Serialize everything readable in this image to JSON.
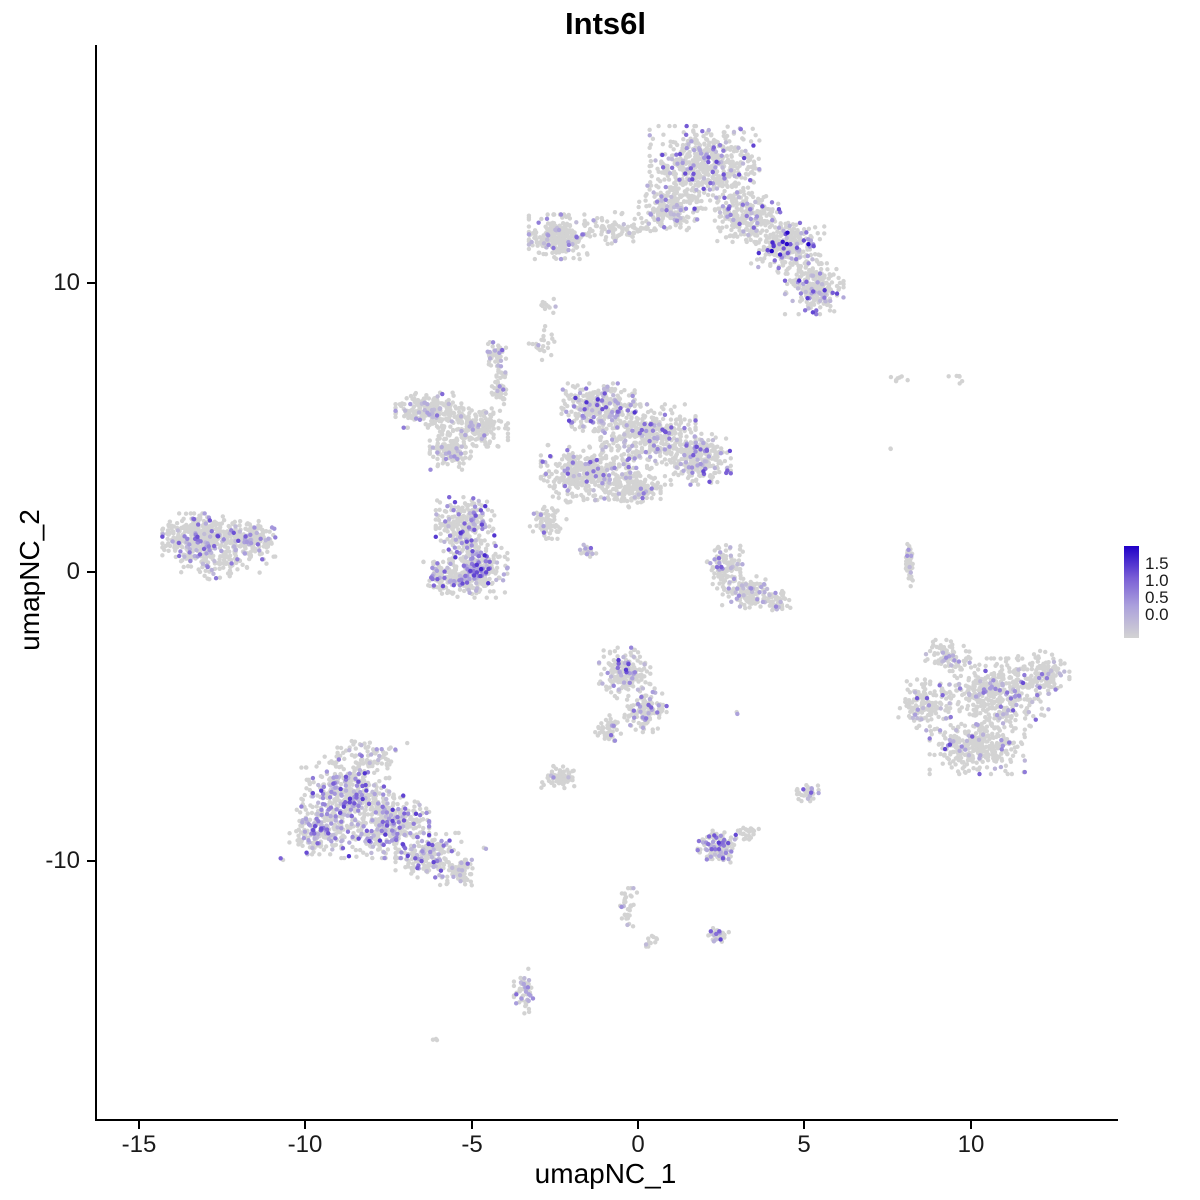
{
  "chart_data": {
    "type": "scatter",
    "title": "Ints6l",
    "xlabel": "umapNC_1",
    "ylabel": "umapNC_2",
    "xlim": [
      -16.3,
      14.3
    ],
    "ylim": [
      -18.9,
      18.2
    ],
    "grid": false,
    "x_ticks": [
      {
        "value": -15,
        "label": "-15"
      },
      {
        "value": -10,
        "label": "-10"
      },
      {
        "value": -5,
        "label": "-5"
      },
      {
        "value": 0,
        "label": "0"
      },
      {
        "value": 5,
        "label": "5"
      },
      {
        "value": 10,
        "label": "10"
      }
    ],
    "y_ticks": [
      {
        "value": 10,
        "label": "10"
      },
      {
        "value": 0,
        "label": "0"
      },
      {
        "value": -10,
        "label": "-10"
      }
    ],
    "legend": {
      "position": "right",
      "ticks": [
        {
          "value": 1.5,
          "label": "1.5"
        },
        {
          "value": 1.0,
          "label": "1.0"
        },
        {
          "value": 0.5,
          "label": "0.5"
        },
        {
          "value": 0.0,
          "label": "0.0"
        }
      ],
      "value_range": [
        0.0,
        1.6
      ]
    },
    "colors": {
      "background": "#ffffff",
      "axis": "#000000",
      "low": "#D3D3D3",
      "high": "#2000C8",
      "stops": [
        {
          "t": 0.0,
          "c": "#D3D3D3"
        },
        {
          "t": 0.35,
          "c": "#ABA0DC"
        },
        {
          "t": 0.65,
          "c": "#7A5FD6"
        },
        {
          "t": 1.0,
          "c": "#2000C8"
        }
      ]
    },
    "point_style": {
      "radius": 2.2
    },
    "seed": 42,
    "lobe_format": [
      "center_x",
      "center_y",
      "radius_x",
      "radius_y",
      "n_points",
      "expressed_fraction",
      "max_expression"
    ],
    "clusters": [
      [
        2.0,
        14.0,
        1.5,
        1.3,
        600,
        0.15,
        1.2
      ],
      [
        0.9,
        12.6,
        0.8,
        0.7,
        200,
        0.12,
        1.0
      ],
      [
        3.3,
        12.3,
        0.9,
        0.8,
        250,
        0.15,
        1.2
      ],
      [
        4.5,
        11.2,
        1.0,
        0.8,
        280,
        0.18,
        1.6
      ],
      [
        5.3,
        9.8,
        0.8,
        0.8,
        220,
        0.18,
        1.3
      ],
      [
        -2.4,
        11.6,
        0.8,
        0.7,
        260,
        0.12,
        1.0
      ],
      [
        -0.6,
        11.9,
        1.0,
        0.5,
        90,
        0.08,
        0.8
      ],
      [
        -2.7,
        9.3,
        0.25,
        0.3,
        12,
        0.1,
        0.6
      ],
      [
        -4.3,
        7.5,
        0.3,
        0.45,
        45,
        0.25,
        1.0
      ],
      [
        -1.2,
        5.7,
        1.0,
        0.75,
        320,
        0.2,
        1.3
      ],
      [
        0.3,
        4.7,
        1.3,
        1.0,
        430,
        0.12,
        1.1
      ],
      [
        1.8,
        3.9,
        0.9,
        0.8,
        280,
        0.15,
        1.2
      ],
      [
        -1.6,
        3.4,
        1.2,
        0.9,
        380,
        0.12,
        1.1
      ],
      [
        -0.2,
        2.9,
        0.8,
        0.6,
        180,
        0.12,
        1.0
      ],
      [
        -6.3,
        5.6,
        0.9,
        0.55,
        230,
        0.1,
        1.0
      ],
      [
        -4.9,
        5.0,
        0.9,
        0.6,
        210,
        0.1,
        1.0
      ],
      [
        -5.6,
        4.2,
        0.6,
        0.6,
        140,
        0.12,
        1.0
      ],
      [
        -4.2,
        6.4,
        0.25,
        0.6,
        50,
        0.1,
        0.8
      ],
      [
        -5.2,
        1.6,
        0.8,
        0.9,
        280,
        0.22,
        1.3
      ],
      [
        -4.8,
        0.1,
        0.8,
        0.9,
        320,
        0.25,
        1.4
      ],
      [
        -5.9,
        -0.2,
        0.5,
        0.5,
        110,
        0.22,
        1.3
      ],
      [
        -2.7,
        1.7,
        0.5,
        0.5,
        70,
        0.12,
        1.0
      ],
      [
        -1.5,
        0.7,
        0.22,
        0.22,
        28,
        0.15,
        1.0
      ],
      [
        -2.9,
        7.9,
        0.35,
        0.55,
        22,
        0.1,
        0.8
      ],
      [
        -13.2,
        1.2,
        1.0,
        0.75,
        360,
        0.15,
        1.2
      ],
      [
        -11.7,
        1.1,
        0.8,
        0.6,
        200,
        0.15,
        1.2
      ],
      [
        -12.6,
        0.3,
        1.3,
        0.5,
        90,
        0.1,
        0.9
      ],
      [
        2.6,
        0.2,
        0.5,
        0.7,
        120,
        0.15,
        1.1
      ],
      [
        3.3,
        -0.7,
        0.7,
        0.5,
        140,
        0.15,
        1.1
      ],
      [
        4.2,
        -1.0,
        0.35,
        0.35,
        50,
        0.1,
        0.9
      ],
      [
        8.15,
        0.4,
        0.1,
        0.85,
        55,
        0.12,
        1.0
      ],
      [
        7.9,
        6.8,
        0.55,
        0.18,
        7,
        0.0,
        0.0
      ],
      [
        9.5,
        6.7,
        0.45,
        0.2,
        6,
        0.0,
        0.0
      ],
      [
        7.6,
        4.2,
        0.12,
        0.12,
        2,
        0.5,
        0.8
      ],
      [
        10.8,
        -4.2,
        1.4,
        1.1,
        420,
        0.13,
        1.2
      ],
      [
        10.2,
        -6.0,
        1.3,
        0.9,
        330,
        0.12,
        1.2
      ],
      [
        8.6,
        -4.6,
        0.7,
        0.8,
        150,
        0.12,
        1.1
      ],
      [
        12.2,
        -3.5,
        0.7,
        0.7,
        120,
        0.12,
        1.1
      ],
      [
        9.3,
        -2.9,
        0.6,
        0.5,
        80,
        0.12,
        1.0
      ],
      [
        -8.8,
        -7.7,
        1.2,
        1.0,
        380,
        0.25,
        1.3
      ],
      [
        -7.6,
        -8.8,
        1.2,
        1.0,
        380,
        0.25,
        1.3
      ],
      [
        -9.6,
        -9.0,
        0.8,
        0.7,
        190,
        0.22,
        1.2
      ],
      [
        -6.3,
        -9.8,
        0.9,
        0.7,
        190,
        0.2,
        1.2
      ],
      [
        -5.4,
        -10.4,
        0.5,
        0.4,
        70,
        0.15,
        1.0
      ],
      [
        -8.1,
        -6.4,
        1.2,
        0.5,
        90,
        0.18,
        1.1
      ],
      [
        -10.7,
        -9.9,
        0.1,
        0.1,
        2,
        0.6,
        1.2
      ],
      [
        -0.4,
        -3.5,
        0.7,
        0.8,
        190,
        0.2,
        1.3
      ],
      [
        0.2,
        -4.8,
        0.6,
        0.7,
        140,
        0.18,
        1.2
      ],
      [
        -0.9,
        -5.4,
        0.35,
        0.4,
        45,
        0.15,
        1.0
      ],
      [
        2.9,
        -4.9,
        0.1,
        0.1,
        2,
        0.6,
        1.0
      ],
      [
        -2.4,
        -7.1,
        0.5,
        0.35,
        85,
        0.06,
        0.9
      ],
      [
        5.1,
        -7.6,
        0.3,
        0.3,
        40,
        0.25,
        1.3
      ],
      [
        2.4,
        -9.5,
        0.55,
        0.5,
        140,
        0.22,
        1.3
      ],
      [
        3.3,
        -9.0,
        0.3,
        0.25,
        25,
        0.1,
        1.0
      ],
      [
        -4.6,
        -9.6,
        0.1,
        0.1,
        2,
        0.6,
        1.1
      ],
      [
        -0.3,
        -11.6,
        0.3,
        0.6,
        35,
        0.2,
        1.1
      ],
      [
        0.4,
        -12.8,
        0.2,
        0.2,
        12,
        0.15,
        1.0
      ],
      [
        2.4,
        -12.6,
        0.3,
        0.25,
        35,
        0.2,
        1.2
      ],
      [
        -3.4,
        -14.5,
        0.3,
        0.7,
        60,
        0.15,
        1.0
      ],
      [
        -6.1,
        -16.2,
        0.12,
        0.12,
        3,
        0.3,
        0.8
      ]
    ]
  }
}
